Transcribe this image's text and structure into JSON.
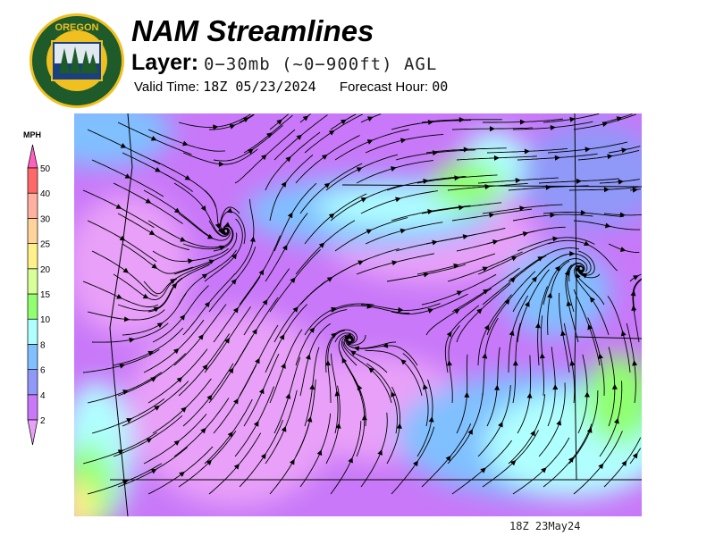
{
  "logo": {
    "text_top": "OREGON",
    "text_bottom": "DEPARTMENT OF FORESTRY"
  },
  "header": {
    "title": "NAM Streamlines",
    "layer_label": "Layer:",
    "layer_value": "0−30mb (~0−900ft) AGL",
    "valid_label": "Valid Time:",
    "valid_value": "18Z 05/23/2024",
    "forecast_label": "Forecast Hour:",
    "forecast_value": "00"
  },
  "colorbar": {
    "unit": "MPH",
    "levels": [
      "2",
      "4",
      "6",
      "8",
      "10",
      "15",
      "20",
      "25",
      "30",
      "40",
      "50"
    ],
    "colors": [
      "#e8a0f8",
      "#c878f8",
      "#9098f8",
      "#80c0ff",
      "#b0ffff",
      "#90ff70",
      "#d8ff98",
      "#fff08a",
      "#ffd39a",
      "#ffb0a0",
      "#ff6868",
      "#ff60c0"
    ]
  },
  "map": {
    "valid_stamp": "18Z 23May24",
    "colors": {
      "purple": "#c878f8",
      "light_purple": "#e8a0f8",
      "blue": "#9098f8",
      "light_blue": "#80c0ff",
      "cyan": "#b0ffff",
      "green": "#90ff70",
      "yellow": "#fff08a"
    }
  }
}
